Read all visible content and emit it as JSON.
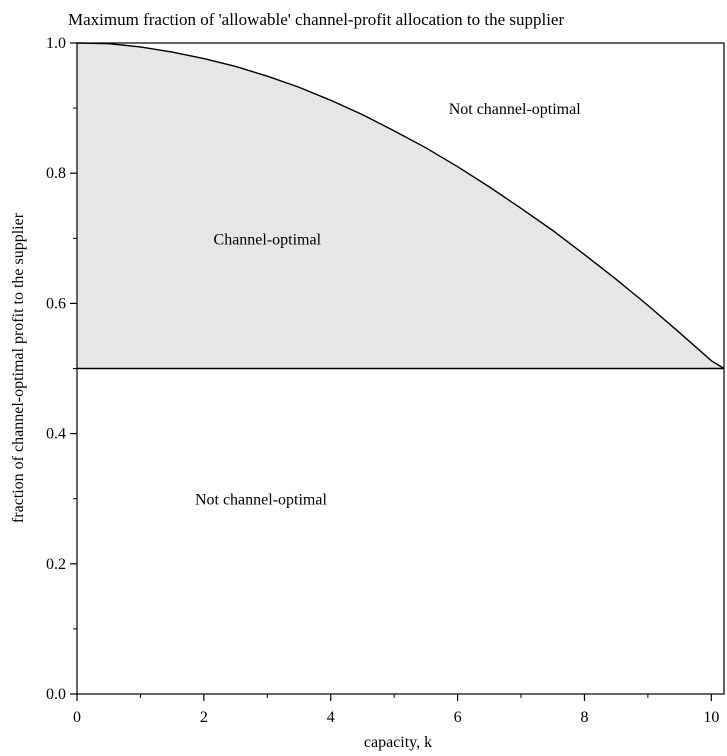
{
  "chart_data": {
    "type": "area",
    "title": "Maximum fraction of 'allowable' channel-profit allocation to the supplier",
    "xlabel": "capacity, k",
    "ylabel": "fraction of channel-optimal profit to the supplier",
    "xlim": [
      0,
      10.2
    ],
    "ylim": [
      0,
      1.0
    ],
    "x_ticks": [
      0,
      2,
      4,
      6,
      8,
      10
    ],
    "y_ticks": [
      0.0,
      0.2,
      0.4,
      0.6,
      0.8,
      1.0
    ],
    "grid": false,
    "legend": "none",
    "series": [
      {
        "x": [
          0,
          0.5,
          1,
          1.5,
          2,
          2.5,
          3,
          3.5,
          4,
          4.5,
          5,
          5.5,
          6,
          6.5,
          7,
          7.5,
          8,
          8.5,
          9,
          9.5,
          10,
          10.2
        ],
        "y": [
          1.0,
          0.999,
          0.994,
          0.986,
          0.976,
          0.964,
          0.949,
          0.932,
          0.912,
          0.89,
          0.865,
          0.839,
          0.81,
          0.779,
          0.746,
          0.712,
          0.675,
          0.637,
          0.597,
          0.555,
          0.512,
          0.5
        ]
      },
      {
        "x": [
          0,
          10.2
        ],
        "y": [
          0.5,
          0.5
        ]
      }
    ],
    "shaded_region": {
      "between": "upper curve and y = 0.5",
      "fill": "#e6e6e6"
    },
    "annotations": [
      {
        "text": "Not channel-optimal",
        "x": 6.9,
        "y": 0.9
      },
      {
        "text": "Channel-optimal",
        "x": 3.0,
        "y": 0.7
      },
      {
        "text": "Not channel-optimal",
        "x": 2.9,
        "y": 0.3
      }
    ],
    "colors": {
      "curve": "#000000",
      "shade": "#e6e6e6",
      "axes": "#000000"
    }
  }
}
